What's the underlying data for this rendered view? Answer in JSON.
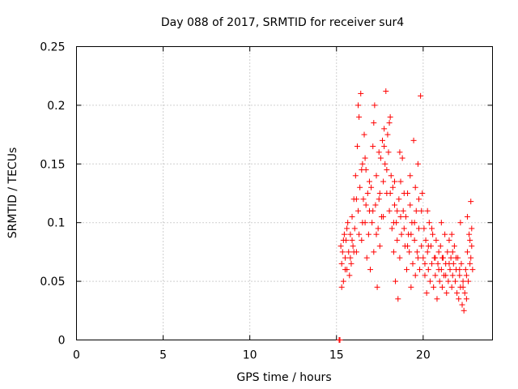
{
  "chart_data": {
    "type": "scatter",
    "title": "Day 088 of 2017, SRMTID for receiver sur4",
    "xlabel": "GPS time / hours",
    "ylabel": "SRMTID / TECUs",
    "xlim": [
      0,
      24
    ],
    "ylim": [
      0,
      0.25
    ],
    "xticks": [
      0,
      5,
      10,
      15,
      20
    ],
    "yticks": [
      0,
      0.05,
      0.1,
      0.15,
      0.2,
      0.25
    ],
    "xtick_labels": [
      "0",
      "5",
      "10",
      "15",
      "20"
    ],
    "ytick_labels": [
      "0",
      "0.05",
      "0.1",
      "0.15",
      "0.2",
      "0.25"
    ],
    "grid": true,
    "marker": "+",
    "color": "#ff0000",
    "series": [
      {
        "name": "SRMTID",
        "points": [
          [
            15.15,
            0.0
          ],
          [
            15.2,
            0.0
          ],
          [
            15.25,
            0.08
          ],
          [
            15.3,
            0.065
          ],
          [
            15.35,
            0.075
          ],
          [
            15.4,
            0.05
          ],
          [
            15.45,
            0.09
          ],
          [
            15.5,
            0.07
          ],
          [
            15.55,
            0.085
          ],
          [
            15.6,
            0.06
          ],
          [
            15.65,
            0.1
          ],
          [
            15.7,
            0.075
          ],
          [
            15.75,
            0.055
          ],
          [
            15.8,
            0.09
          ],
          [
            15.85,
            0.065
          ],
          [
            15.9,
            0.105
          ],
          [
            15.95,
            0.08
          ],
          [
            16.0,
            0.12
          ],
          [
            16.05,
            0.095
          ],
          [
            16.1,
            0.14
          ],
          [
            16.15,
            0.075
          ],
          [
            16.2,
            0.165
          ],
          [
            16.25,
            0.11
          ],
          [
            16.3,
            0.19
          ],
          [
            16.35,
            0.13
          ],
          [
            16.4,
            0.21
          ],
          [
            16.45,
            0.085
          ],
          [
            16.5,
            0.15
          ],
          [
            16.55,
            0.12
          ],
          [
            16.6,
            0.175
          ],
          [
            16.65,
            0.1
          ],
          [
            16.7,
            0.145
          ],
          [
            16.75,
            0.07
          ],
          [
            16.8,
            0.125
          ],
          [
            16.85,
            0.09
          ],
          [
            16.9,
            0.11
          ],
          [
            16.95,
            0.06
          ],
          [
            17.0,
            0.13
          ],
          [
            17.05,
            0.1
          ],
          [
            17.1,
            0.165
          ],
          [
            17.15,
            0.075
          ],
          [
            17.2,
            0.2
          ],
          [
            17.25,
            0.115
          ],
          [
            17.3,
            0.14
          ],
          [
            17.35,
            0.045
          ],
          [
            17.4,
            0.095
          ],
          [
            17.45,
            0.12
          ],
          [
            17.5,
            0.08
          ],
          [
            17.55,
            0.155
          ],
          [
            17.6,
            0.105
          ],
          [
            17.65,
            0.17
          ],
          [
            17.7,
            0.135
          ],
          [
            17.75,
            0.18
          ],
          [
            17.8,
            0.15
          ],
          [
            17.85,
            0.212
          ],
          [
            17.9,
            0.125
          ],
          [
            17.95,
            0.175
          ],
          [
            18.0,
            0.16
          ],
          [
            18.05,
            0.11
          ],
          [
            18.1,
            0.19
          ],
          [
            18.15,
            0.14
          ],
          [
            18.2,
            0.095
          ],
          [
            18.25,
            0.13
          ],
          [
            18.3,
            0.075
          ],
          [
            18.35,
            0.115
          ],
          [
            18.4,
            0.05
          ],
          [
            18.45,
            0.1
          ],
          [
            18.5,
            0.085
          ],
          [
            18.55,
            0.035
          ],
          [
            18.6,
            0.12
          ],
          [
            18.65,
            0.07
          ],
          [
            18.7,
            0.135
          ],
          [
            18.75,
            0.09
          ],
          [
            18.8,
            0.155
          ],
          [
            18.85,
            0.11
          ],
          [
            18.9,
            0.125
          ],
          [
            18.95,
            0.08
          ],
          [
            19.0,
            0.105
          ],
          [
            19.05,
            0.06
          ],
          [
            19.1,
            0.125
          ],
          [
            19.15,
            0.09
          ],
          [
            19.2,
            0.075
          ],
          [
            19.25,
            0.115
          ],
          [
            19.3,
            0.045
          ],
          [
            19.35,
            0.1
          ],
          [
            19.4,
            0.065
          ],
          [
            19.45,
            0.17
          ],
          [
            19.5,
            0.085
          ],
          [
            19.55,
            0.055
          ],
          [
            19.6,
            0.11
          ],
          [
            19.65,
            0.075
          ],
          [
            19.7,
            0.15
          ],
          [
            19.75,
            0.095
          ],
          [
            19.8,
            0.06
          ],
          [
            19.85,
            0.208
          ],
          [
            19.9,
            0.08
          ],
          [
            19.95,
            0.125
          ],
          [
            20.0,
            0.07
          ],
          [
            20.05,
            0.095
          ],
          [
            20.1,
            0.055
          ],
          [
            20.15,
            0.085
          ],
          [
            20.2,
            0.04
          ],
          [
            20.25,
            0.075
          ],
          [
            20.3,
            0.06
          ],
          [
            20.35,
            0.1
          ],
          [
            20.4,
            0.05
          ],
          [
            20.45,
            0.08
          ],
          [
            20.5,
            0.065
          ],
          [
            20.55,
            0.09
          ],
          [
            20.6,
            0.045
          ],
          [
            20.65,
            0.07
          ],
          [
            20.7,
            0.055
          ],
          [
            20.75,
            0.085
          ],
          [
            20.8,
            0.035
          ],
          [
            20.85,
            0.065
          ],
          [
            20.9,
            0.075
          ],
          [
            20.95,
            0.05
          ],
          [
            21.0,
            0.08
          ],
          [
            21.05,
            0.06
          ],
          [
            21.1,
            0.045
          ],
          [
            21.15,
            0.07
          ],
          [
            21.2,
            0.055
          ],
          [
            21.25,
            0.09
          ],
          [
            21.3,
            0.065
          ],
          [
            21.35,
            0.04
          ],
          [
            21.4,
            0.075
          ],
          [
            21.45,
            0.05
          ],
          [
            21.5,
            0.085
          ],
          [
            21.55,
            0.06
          ],
          [
            21.6,
            0.07
          ],
          [
            21.65,
            0.045
          ],
          [
            21.7,
            0.055
          ],
          [
            21.75,
            0.065
          ],
          [
            21.8,
            0.08
          ],
          [
            21.85,
            0.05
          ],
          [
            21.9,
            0.06
          ],
          [
            21.95,
            0.04
          ],
          [
            22.0,
            0.07
          ],
          [
            22.05,
            0.035
          ],
          [
            22.1,
            0.055
          ],
          [
            22.15,
            0.045
          ],
          [
            22.2,
            0.065
          ],
          [
            22.25,
            0.03
          ],
          [
            22.3,
            0.05
          ],
          [
            22.35,
            0.025
          ],
          [
            22.4,
            0.04
          ],
          [
            22.45,
            0.06
          ],
          [
            22.5,
            0.035
          ],
          [
            22.55,
            0.075
          ],
          [
            22.6,
            0.05
          ],
          [
            22.65,
            0.09
          ],
          [
            22.7,
            0.065
          ],
          [
            22.75,
            0.118
          ],
          [
            22.8,
            0.08
          ],
          [
            22.85,
            0.06
          ],
          [
            15.3,
            0.045
          ],
          [
            15.4,
            0.085
          ],
          [
            15.6,
            0.095
          ],
          [
            15.8,
            0.07
          ],
          [
            16.0,
            0.075
          ],
          [
            16.15,
            0.12
          ],
          [
            16.3,
            0.09
          ],
          [
            16.5,
            0.1
          ],
          [
            16.7,
            0.115
          ],
          [
            16.9,
            0.135
          ],
          [
            17.1,
            0.11
          ],
          [
            17.3,
            0.09
          ],
          [
            17.5,
            0.125
          ],
          [
            17.7,
            0.105
          ],
          [
            17.9,
            0.145
          ],
          [
            18.1,
            0.125
          ],
          [
            18.3,
            0.1
          ],
          [
            18.5,
            0.11
          ],
          [
            18.7,
            0.105
          ],
          [
            18.9,
            0.095
          ],
          [
            19.1,
            0.08
          ],
          [
            19.3,
            0.09
          ],
          [
            19.5,
            0.1
          ],
          [
            19.7,
            0.07
          ],
          [
            19.9,
            0.11
          ],
          [
            20.1,
            0.065
          ],
          [
            20.3,
            0.08
          ],
          [
            20.5,
            0.095
          ],
          [
            20.7,
            0.07
          ],
          [
            20.9,
            0.06
          ],
          [
            21.1,
            0.07
          ],
          [
            21.3,
            0.055
          ],
          [
            21.5,
            0.065
          ],
          [
            21.7,
            0.075
          ],
          [
            21.9,
            0.07
          ],
          [
            22.1,
            0.06
          ],
          [
            22.3,
            0.045
          ],
          [
            22.5,
            0.055
          ],
          [
            22.7,
            0.085
          ],
          [
            22.8,
            0.095
          ],
          [
            16.25,
            0.2
          ],
          [
            16.45,
            0.145
          ],
          [
            16.65,
            0.155
          ],
          [
            17.15,
            0.185
          ],
          [
            17.45,
            0.16
          ],
          [
            17.75,
            0.165
          ],
          [
            18.05,
            0.185
          ],
          [
            18.35,
            0.135
          ],
          [
            18.65,
            0.16
          ],
          [
            19.25,
            0.14
          ],
          [
            19.55,
            0.13
          ],
          [
            19.75,
            0.12
          ],
          [
            20.25,
            0.11
          ],
          [
            21.05,
            0.1
          ],
          [
            21.65,
            0.09
          ],
          [
            22.15,
            0.1
          ],
          [
            22.55,
            0.105
          ],
          [
            22.75,
            0.07
          ],
          [
            15.5,
            0.06
          ],
          [
            15.9,
            0.085
          ]
        ]
      }
    ]
  }
}
